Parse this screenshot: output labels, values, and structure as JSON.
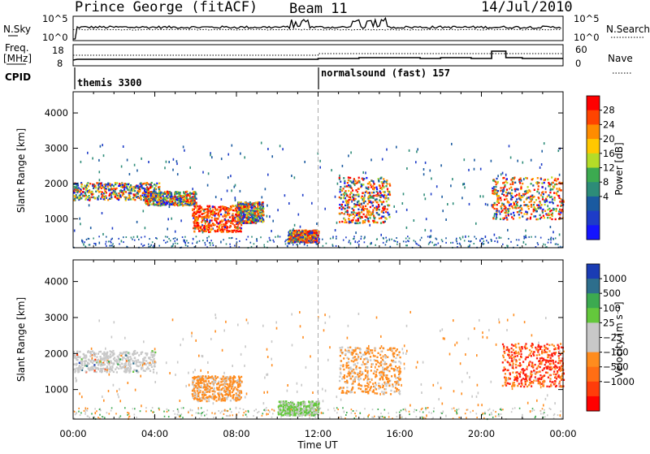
{
  "header": {
    "station": "Prince George (fitACF)",
    "beam": "Beam 11",
    "date": "14/Jul/2010"
  },
  "noise_panel": {
    "left_label": "N.Sky",
    "left_ticks": [
      "10^5",
      "10^0"
    ],
    "right_ticks": [
      "10^5",
      "10^0"
    ],
    "right_label": "N.Search"
  },
  "freq_panel": {
    "left_label_1": "Freq.",
    "left_label_2": "[MHz]",
    "left_ticks": [
      "18",
      "8"
    ],
    "right_ticks": [
      "60",
      "0"
    ],
    "right_label": "Nave"
  },
  "cpid": {
    "label": "CPID",
    "segments": [
      {
        "name": "themis 3300",
        "start": "00:00"
      },
      {
        "name": "normalsound (fast) 157",
        "start": "12:00"
      }
    ]
  },
  "chart_data": [
    {
      "type": "heatmap",
      "panel": "power",
      "ylabel": "Slant Range [km]",
      "yticks": [
        1000,
        2000,
        3000,
        4000
      ],
      "ylim": [
        180,
        4600
      ],
      "xlabel": "Time UT",
      "xticks": [
        "00:00",
        "04:00",
        "08:00",
        "12:00",
        "16:00",
        "20:00",
        "00:00"
      ],
      "xlim_hours": [
        0,
        24
      ],
      "colorbar": {
        "label": "Power [dB]",
        "ticks": [
          "28",
          "24",
          "20",
          "16",
          "12",
          "8",
          "4"
        ],
        "colors": [
          "#ff0000",
          "#ff4400",
          "#ff8c00",
          "#ffc800",
          "#b4dc28",
          "#3caa50",
          "#2d8c78",
          "#1a5aa0",
          "#1e3cc8",
          "#1414ff"
        ]
      },
      "regions": [
        {
          "t": [
            0,
            4.2
          ],
          "range": [
            1550,
            2050
          ],
          "level": "8-20 dB"
        },
        {
          "t": [
            3.5,
            6
          ],
          "range": [
            1400,
            1800
          ],
          "level": "12-24 dB"
        },
        {
          "t": [
            5.8,
            8.2
          ],
          "range": [
            650,
            1400
          ],
          "level": ">28 dB"
        },
        {
          "t": [
            8,
            9.3
          ],
          "range": [
            900,
            1500
          ],
          "level": "16-28 dB"
        },
        {
          "t": [
            10.5,
            12
          ],
          "range": [
            350,
            700
          ],
          "level": "16-28 dB"
        },
        {
          "t": [
            13,
            15.5
          ],
          "range": [
            900,
            2200
          ],
          "level": "16-28 dB"
        },
        {
          "t": [
            20.5,
            24
          ],
          "range": [
            1000,
            2200
          ],
          "level": "16-28 dB"
        }
      ]
    },
    {
      "type": "heatmap",
      "panel": "velocity",
      "ylabel": "Slant Range [km]",
      "yticks": [
        1000,
        2000,
        3000,
        4000
      ],
      "ylim": [
        180,
        4600
      ],
      "xlabel": "Time UT",
      "xticks": [
        "00:00",
        "04:00",
        "08:00",
        "12:00",
        "16:00",
        "20:00",
        "00:00"
      ],
      "xlim_hours": [
        0,
        24
      ],
      "colorbar": {
        "label": "Velocity [m s⁻¹]",
        "ticks": [
          "1000",
          "500",
          "100",
          "25",
          "−25",
          "−100",
          "−500",
          "−1000"
        ],
        "colors": [
          "#1a3cb4",
          "#2d6e8c",
          "#3caa50",
          "#64c83c",
          "#c8c8c8",
          "#c8c8c8",
          "#ff8c1e",
          "#ff6e14",
          "#ff3c0a",
          "#ff0000"
        ]
      },
      "regions": [
        {
          "t": [
            0,
            4
          ],
          "range": [
            1500,
            2100
          ],
          "velocity": "-25 to 25 m/s"
        },
        {
          "t": [
            5.8,
            8.2
          ],
          "range": [
            700,
            1400
          ],
          "velocity": "-100 to -500 m/s"
        },
        {
          "t": [
            10,
            12
          ],
          "range": [
            300,
            700
          ],
          "velocity": "25 to 100 m/s"
        },
        {
          "t": [
            13,
            16
          ],
          "range": [
            900,
            2200
          ],
          "velocity": "-100 to -500 m/s"
        },
        {
          "t": [
            21,
            24
          ],
          "range": [
            1100,
            2300
          ],
          "velocity": "-500 to -1000 m/s"
        }
      ]
    }
  ]
}
